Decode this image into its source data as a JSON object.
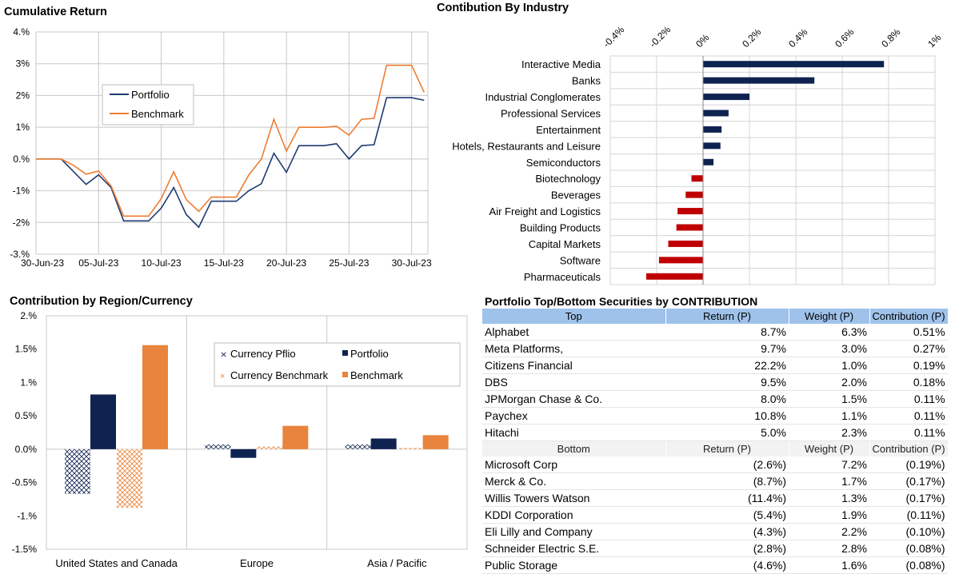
{
  "colors": {
    "portfolio": "#1f3b70",
    "benchmark": "#ed7d31",
    "navy": "#0f2350",
    "red": "#c00000",
    "orange": "#e8843b",
    "header": "#9fc2ea",
    "grid": "#c8c8c8"
  },
  "chart_data": [
    {
      "type": "line",
      "title": "Cumulative Return",
      "x_ticks": [
        "30-Jun-23",
        "05-Jul-23",
        "10-Jul-23",
        "15-Jul-23",
        "20-Jul-23",
        "25-Jul-23",
        "30-Jul-23"
      ],
      "y_ticks": [
        "4.%",
        "3%",
        "2%",
        "1%",
        "0.%",
        "-1%",
        "-2%",
        "-3.%"
      ],
      "ylim": [
        -3,
        4
      ],
      "legend_position": "upper-left",
      "series": [
        {
          "name": "Portfolio",
          "x": [
            "2023-06-30",
            "2023-07-02",
            "2023-07-03",
            "2023-07-04",
            "2023-07-05",
            "2023-07-06",
            "2023-07-07",
            "2023-07-08",
            "2023-07-09",
            "2023-07-10",
            "2023-07-11",
            "2023-07-12",
            "2023-07-13",
            "2023-07-14",
            "2023-07-15",
            "2023-07-16",
            "2023-07-17",
            "2023-07-18",
            "2023-07-19",
            "2023-07-20",
            "2023-07-21",
            "2023-07-22",
            "2023-07-23",
            "2023-07-24",
            "2023-07-25",
            "2023-07-26",
            "2023-07-27",
            "2023-07-28",
            "2023-07-29",
            "2023-07-30",
            "2023-07-31"
          ],
          "values": [
            0,
            0,
            -0.4,
            -0.8,
            -0.5,
            -0.9,
            -1.95,
            -1.95,
            -1.95,
            -1.55,
            -0.9,
            -1.75,
            -2.15,
            -1.33,
            -1.33,
            -1.33,
            -1.0,
            -0.78,
            0.18,
            -0.42,
            0.42,
            0.42,
            0.42,
            0.48,
            0.0,
            0.42,
            0.45,
            1.93,
            1.93,
            1.93,
            1.85
          ]
        },
        {
          "name": "Benchmark",
          "x": [
            "2023-06-30",
            "2023-07-02",
            "2023-07-03",
            "2023-07-04",
            "2023-07-05",
            "2023-07-06",
            "2023-07-07",
            "2023-07-08",
            "2023-07-09",
            "2023-07-10",
            "2023-07-11",
            "2023-07-12",
            "2023-07-13",
            "2023-07-14",
            "2023-07-15",
            "2023-07-16",
            "2023-07-17",
            "2023-07-18",
            "2023-07-19",
            "2023-07-20",
            "2023-07-21",
            "2023-07-22",
            "2023-07-23",
            "2023-07-24",
            "2023-07-25",
            "2023-07-26",
            "2023-07-27",
            "2023-07-28",
            "2023-07-29",
            "2023-07-30",
            "2023-07-31"
          ],
          "values": [
            0,
            0,
            -0.2,
            -0.48,
            -0.38,
            -0.85,
            -1.8,
            -1.8,
            -1.8,
            -1.25,
            -0.4,
            -1.28,
            -1.65,
            -1.2,
            -1.2,
            -1.2,
            -0.5,
            0.0,
            1.25,
            0.25,
            1.0,
            1.0,
            1.0,
            1.03,
            0.75,
            1.25,
            1.28,
            2.95,
            2.95,
            2.95,
            2.1
          ]
        }
      ]
    },
    {
      "type": "bar",
      "orientation": "horizontal",
      "title": "Contibution By Industry",
      "x_ticks": [
        "-0.4%",
        "-0.2%",
        "0%",
        "0.2%",
        "0.4%",
        "0.6%",
        "0.8%",
        "1%"
      ],
      "xlim": [
        -0.4,
        1.0
      ],
      "categories": [
        "Interactive Media",
        "Banks",
        "Industrial Conglomerates",
        "Professional Services",
        "Entertainment",
        "Hotels, Restaurants and Leisure",
        "Semiconductors",
        "Biotechnology",
        "Beverages",
        "Air Freight and Logistics",
        "Building Products",
        "Capital Markets",
        "Software",
        "Pharmaceuticals"
      ],
      "values": [
        0.78,
        0.48,
        0.2,
        0.11,
        0.08,
        0.075,
        0.045,
        -0.05,
        -0.075,
        -0.11,
        -0.115,
        -0.15,
        -0.19,
        -0.245
      ]
    },
    {
      "type": "bar",
      "title": "Contribution by Region/Currency",
      "y_ticks": [
        "2.%",
        "1.5%",
        "1.%",
        "0.5%",
        "0.0%",
        "-0.5%",
        "-1.%",
        "-1.5%"
      ],
      "ylim": [
        -1.5,
        2.0
      ],
      "categories": [
        "United States and Canada",
        "Europe",
        "Asia / Pacific"
      ],
      "series": [
        {
          "name": "Currency Pflio",
          "values": [
            -0.67,
            0.07,
            0.07
          ]
        },
        {
          "name": "Portfolio",
          "values": [
            0.82,
            -0.13,
            0.16
          ]
        },
        {
          "name": "Currency Benchmark",
          "values": [
            -0.88,
            0.04,
            0.02
          ]
        },
        {
          "name": "Benchmark",
          "values": [
            1.56,
            0.35,
            0.21
          ]
        }
      ]
    }
  ],
  "securities": {
    "title": "Portfolio Top/Bottom Securities by CONTRIBUTION",
    "top_header": [
      "Top",
      "Return (P)",
      "Weight (P)",
      "Contribution (P)"
    ],
    "top": [
      [
        "Alphabet",
        "8.7%",
        "6.3%",
        "0.51%"
      ],
      [
        "Meta Platforms,",
        "9.7%",
        "3.0%",
        "0.27%"
      ],
      [
        "Citizens Financial",
        "22.2%",
        "1.0%",
        "0.19%"
      ],
      [
        "DBS",
        "9.5%",
        "2.0%",
        "0.18%"
      ],
      [
        "JPMorgan Chase & Co.",
        "8.0%",
        "1.5%",
        "0.11%"
      ],
      [
        "Paychex",
        "10.8%",
        "1.1%",
        "0.11%"
      ],
      [
        "Hitachi",
        "5.0%",
        "2.3%",
        "0.11%"
      ]
    ],
    "bottom_header": [
      "Bottom",
      "Return (P)",
      "Weight (P)",
      "Contribution (P)"
    ],
    "bottom": [
      [
        "Microsoft Corp",
        "(2.6%)",
        "7.2%",
        "(0.19%)"
      ],
      [
        "Merck & Co.",
        "(8.7%)",
        "1.7%",
        "(0.17%)"
      ],
      [
        "Willis Towers Watson",
        "(11.4%)",
        "1.3%",
        "(0.17%)"
      ],
      [
        "KDDI Corporation",
        "(5.4%)",
        "1.9%",
        "(0.11%)"
      ],
      [
        "Eli Lilly and Company",
        "(4.3%)",
        "2.2%",
        "(0.10%)"
      ],
      [
        "Schneider Electric S.E.",
        "(2.8%)",
        "2.8%",
        "(0.08%)"
      ],
      [
        "Public Storage",
        "(4.6%)",
        "1.6%",
        "(0.08%)"
      ]
    ]
  }
}
